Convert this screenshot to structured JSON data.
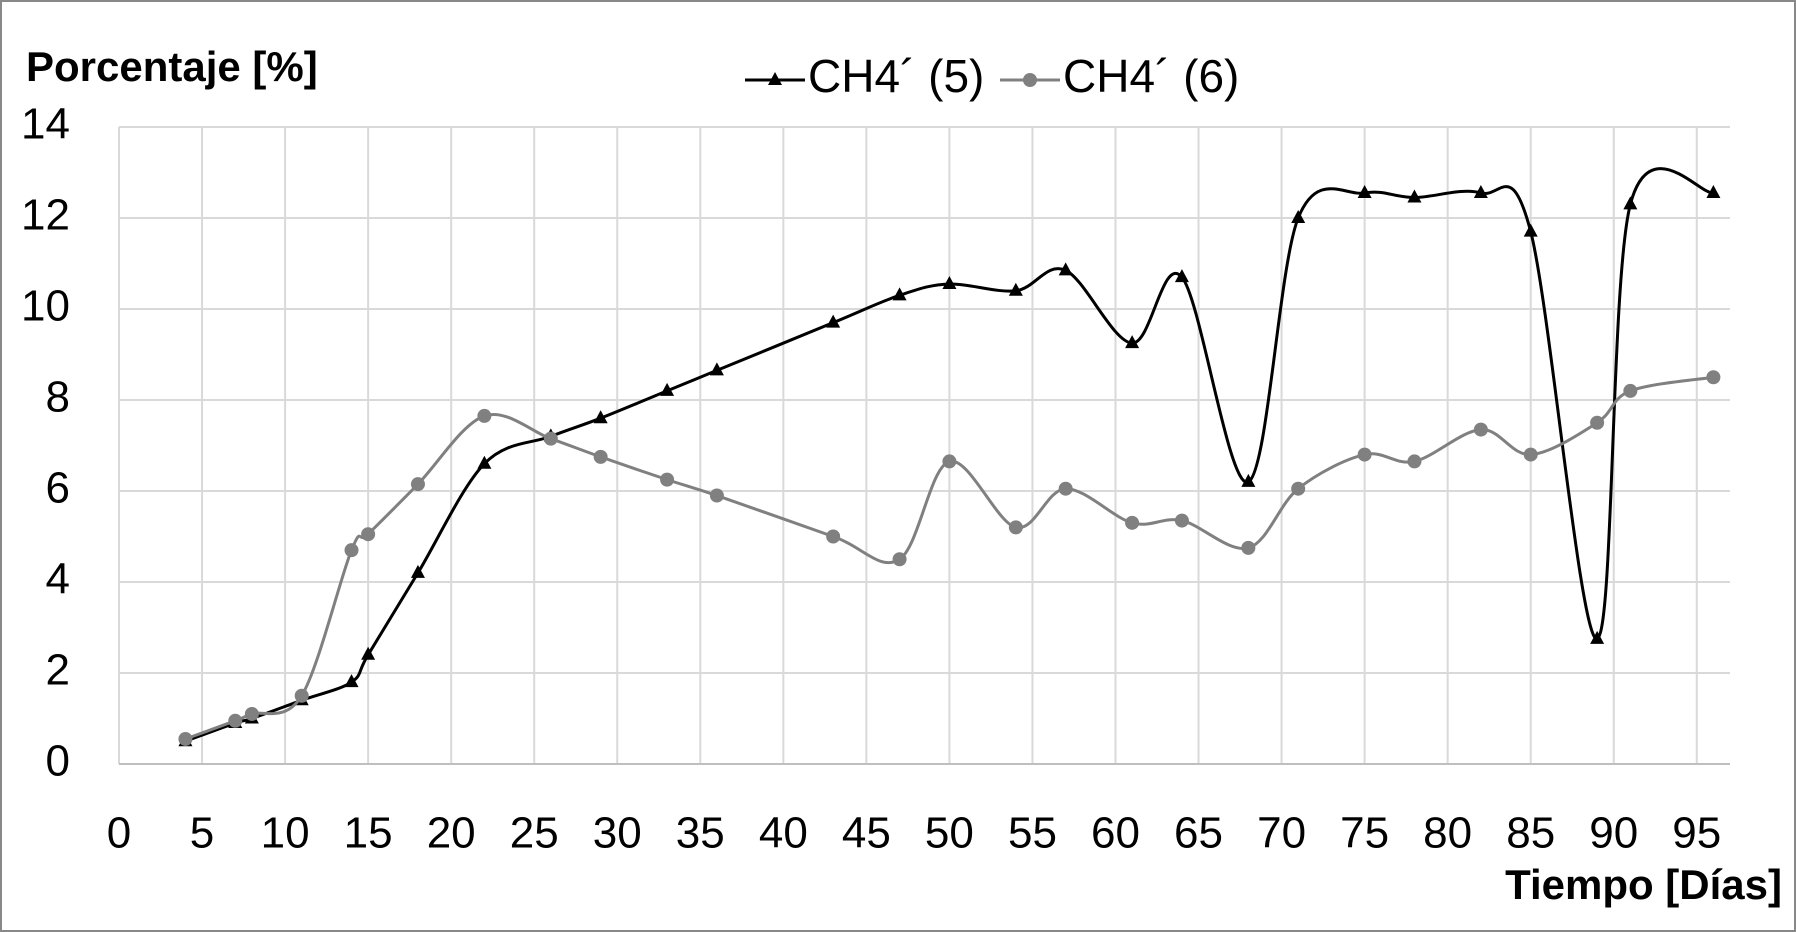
{
  "chart_data": {
    "type": "line",
    "y_label": "Porcentaje [%]",
    "x_label": "Tiempo [Días]",
    "x": [
      4,
      7,
      8,
      11,
      14,
      15,
      18,
      22,
      26,
      29,
      33,
      36,
      43,
      47,
      50,
      54,
      57,
      61,
      64,
      68,
      71,
      75,
      78,
      82,
      85,
      89,
      91,
      96
    ],
    "series": [
      {
        "name": "CH4´ (5)",
        "color": "#000000",
        "marker": "triangle",
        "values": [
          0.5,
          0.9,
          1.0,
          1.4,
          1.8,
          2.4,
          4.2,
          6.6,
          7.2,
          7.6,
          8.2,
          8.65,
          9.7,
          10.3,
          10.55,
          10.4,
          10.85,
          9.25,
          10.7,
          6.2,
          12.0,
          12.55,
          12.45,
          12.55,
          11.7,
          2.75,
          12.3,
          12.55
        ]
      },
      {
        "name": "CH4´ (6)",
        "color": "#808080",
        "marker": "circle",
        "values": [
          0.55,
          0.95,
          1.1,
          1.5,
          4.7,
          5.05,
          6.15,
          7.65,
          7.15,
          6.75,
          6.25,
          5.9,
          5.0,
          4.5,
          6.65,
          5.2,
          6.05,
          5.3,
          5.35,
          4.75,
          6.05,
          6.8,
          6.65,
          7.35,
          6.8,
          7.5,
          8.2,
          8.5
        ]
      }
    ],
    "xlim": [
      0,
      97
    ],
    "xticks": [
      0,
      5,
      10,
      15,
      20,
      25,
      30,
      35,
      40,
      45,
      50,
      55,
      60,
      65,
      70,
      75,
      80,
      85,
      90,
      95
    ],
    "ylim": [
      0,
      14
    ],
    "yticks": [
      0,
      2,
      4,
      6,
      8,
      10,
      12,
      14
    ],
    "grid": true,
    "smooth": true,
    "legend": "top"
  }
}
